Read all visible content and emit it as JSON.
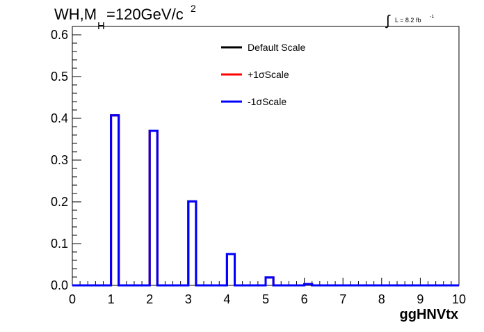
{
  "chart_data": {
    "type": "line",
    "title": {
      "main": "WH,M",
      "sub": "H",
      "rest": "=120GeV/c",
      "sup": "2"
    },
    "lumi": {
      "integral": "∫",
      "label": "L = 8.2 fb",
      "sup": "-1"
    },
    "xlabel": "ggHNVtx",
    "ylabel": "",
    "xlim": [
      0,
      10
    ],
    "ylim": [
      0,
      0.62
    ],
    "x_ticks": [
      "0",
      "1",
      "2",
      "3",
      "4",
      "5",
      "6",
      "7",
      "8",
      "9",
      "10"
    ],
    "y_ticks": [
      "0.0",
      "0.1",
      "0.2",
      "0.3",
      "0.4",
      "0.5",
      "0.6"
    ],
    "bin_width": 0.2,
    "bin_low_edges": [
      1.0,
      2.0,
      3.0,
      4.0,
      5.0,
      6.0
    ],
    "legend": {
      "position": "top-center"
    },
    "series": [
      {
        "name": "Default Scale",
        "color": "#000000",
        "values": [
          0.407,
          0.37,
          0.201,
          0.075,
          0.019,
          0.003
        ]
      },
      {
        "name": "+1σScale",
        "color": "#ff0000",
        "values": [
          0.407,
          0.37,
          0.201,
          0.075,
          0.019,
          0.003
        ]
      },
      {
        "name": "-1σScale",
        "color": "#0000ff",
        "values": [
          0.407,
          0.37,
          0.201,
          0.075,
          0.019,
          0.003
        ]
      }
    ]
  }
}
